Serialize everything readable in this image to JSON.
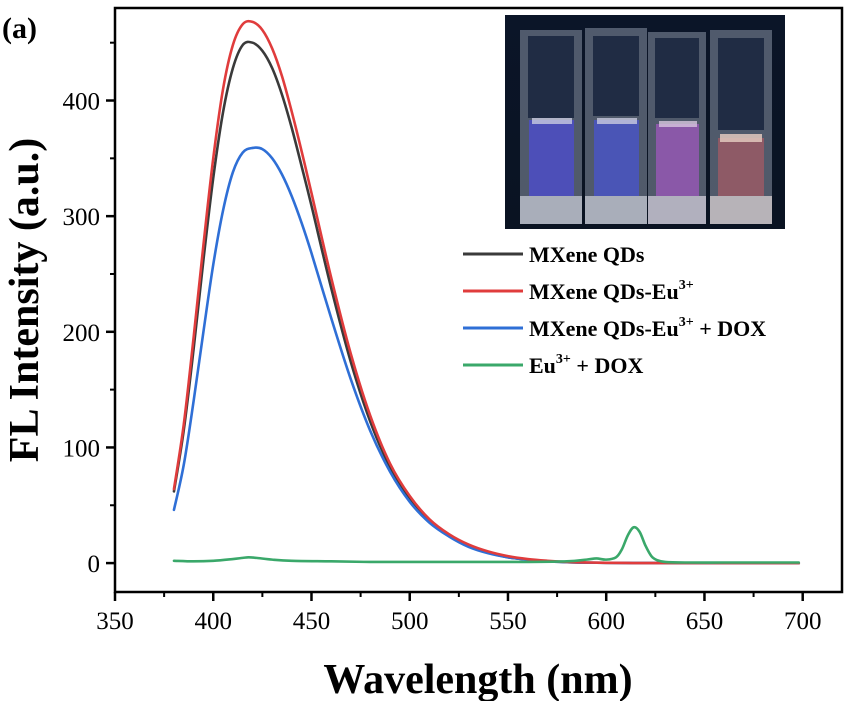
{
  "chart_data": {
    "type": "line",
    "panel_label": "(a)",
    "xlabel": "Wavelength (nm)",
    "ylabel": "FL Intensity (a.u.)",
    "xlim": [
      350,
      720
    ],
    "ylim": [
      -25,
      480
    ],
    "xticks": [
      350,
      400,
      450,
      500,
      550,
      600,
      650,
      700
    ],
    "yticks": [
      0,
      100,
      200,
      300,
      400
    ],
    "legend_position": "right, below inset photo",
    "inset": "photograph of four cuvettes under UV light: blue, blue, pink, pale orange",
    "series": [
      {
        "name": "MXene QDs",
        "legend": {
          "base": "MXene QDs",
          "sup": "",
          "suffix": ""
        },
        "color": "#3a3a3a",
        "x": [
          380,
          385,
          390,
          395,
          400,
          405,
          410,
          415,
          420,
          425,
          430,
          435,
          440,
          445,
          450,
          460,
          470,
          480,
          490,
          500,
          510,
          520,
          530,
          540,
          550,
          560,
          570,
          580,
          590,
          600,
          610,
          620,
          630,
          640,
          650,
          660,
          670,
          680,
          690,
          698
        ],
        "y": [
          62,
          115,
          185,
          262,
          333,
          390,
          428,
          448,
          450,
          443,
          428,
          405,
          376,
          343,
          309,
          238,
          174,
          122,
          83,
          56,
          37,
          24,
          15,
          9,
          5,
          3,
          1.5,
          0.8,
          0.4,
          0.2,
          0.1,
          0,
          0,
          0,
          0,
          0,
          0,
          0,
          0,
          0
        ]
      },
      {
        "name": "MXene QDs-Eu3+",
        "legend": {
          "base": "MXene QDs-Eu",
          "sup": "3+",
          "suffix": ""
        },
        "color": "#e03c3c",
        "x": [
          380,
          385,
          390,
          395,
          400,
          405,
          410,
          415,
          420,
          425,
          430,
          435,
          440,
          445,
          450,
          460,
          470,
          480,
          490,
          500,
          510,
          520,
          530,
          540,
          550,
          560,
          570,
          580,
          590,
          600,
          610,
          620,
          630,
          640,
          650,
          660,
          670,
          680,
          690,
          698
        ],
        "y": [
          64,
          120,
          195,
          275,
          350,
          410,
          448,
          466,
          468,
          461,
          445,
          421,
          390,
          356,
          320,
          247,
          181,
          127,
          86,
          58,
          38,
          25,
          16,
          10,
          6,
          3.5,
          2,
          1,
          0.5,
          0.2,
          0.1,
          0,
          0,
          0,
          0,
          0,
          0,
          0,
          0,
          0
        ]
      },
      {
        "name": "MXene QDs-Eu3+ + DOX",
        "legend": {
          "base": "MXene QDs-Eu",
          "sup": "3+",
          "suffix": " + DOX"
        },
        "color": "#2f6fd6",
        "x": [
          380,
          385,
          390,
          395,
          400,
          405,
          410,
          415,
          420,
          425,
          430,
          435,
          440,
          445,
          450,
          460,
          470,
          480,
          490,
          500,
          510,
          520,
          530,
          540,
          550,
          560,
          570,
          580,
          590,
          600,
          610,
          620,
          630,
          640,
          650,
          660,
          670,
          680,
          690,
          698
        ],
        "y": [
          46,
          85,
          140,
          200,
          258,
          305,
          338,
          355,
          359,
          358,
          350,
          336,
          317,
          294,
          268,
          212,
          159,
          114,
          79,
          53,
          35,
          23,
          14,
          8.5,
          5,
          3,
          1.5,
          0.8,
          0.4,
          0.2,
          0.1,
          0,
          0,
          0,
          0,
          0,
          0,
          0,
          0,
          0
        ]
      },
      {
        "name": "Eu3+ + DOX",
        "legend": {
          "base": "Eu",
          "sup": "3+",
          "suffix": " + DOX"
        },
        "color": "#3aa86a",
        "x": [
          380,
          390,
          400,
          410,
          415,
          418,
          422,
          430,
          440,
          460,
          480,
          500,
          520,
          540,
          560,
          580,
          590,
          595,
          600,
          605,
          608,
          611,
          614,
          617,
          620,
          623,
          626,
          630,
          640,
          660,
          680,
          698
        ],
        "y": [
          2,
          1.5,
          2,
          3.5,
          4.5,
          5,
          4.5,
          3,
          2,
          1.5,
          1,
          1,
          1,
          1,
          1,
          1.5,
          3,
          4,
          3,
          5,
          12,
          24,
          31,
          27,
          15,
          6,
          2.5,
          1,
          0.5,
          0.5,
          0.5,
          0.5
        ]
      }
    ]
  }
}
